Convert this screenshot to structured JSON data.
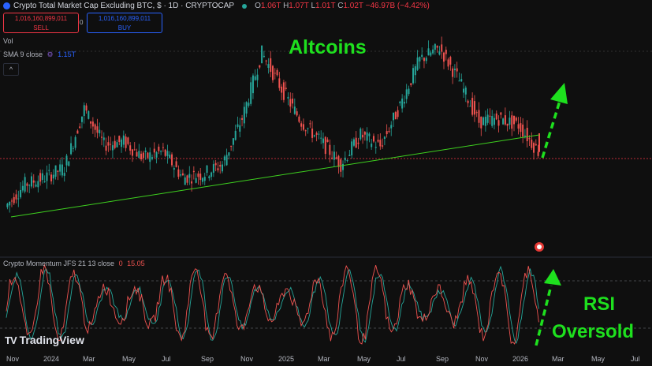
{
  "header": {
    "title": "Crypto Total Market Cap Excluding BTC, $ · 1D · CRYPTOCAP",
    "ohlc": [
      {
        "k": "O",
        "v": "1.06T"
      },
      {
        "k": "H",
        "v": "1.07T"
      },
      {
        "k": "L",
        "v": "1.01T"
      },
      {
        "k": "C",
        "v": "1.02T"
      }
    ],
    "change": "−46.97B (−4.42%)"
  },
  "trade": {
    "sell_price": "1,016,160,899,011",
    "sell_label": "SELL",
    "spread": "0",
    "buy_price": "1,016,160,899,011",
    "buy_label": "BUY"
  },
  "indicators": {
    "vol_label": "Vol",
    "sma_label": "SMA 9 close",
    "sma_value": "1.15T",
    "collapse_glyph": "^",
    "osc_label": "Crypto Momentum JFS 21 13 close",
    "osc_v1": "0",
    "osc_v2": "15.05"
  },
  "annotations": {
    "altcoins": "Altcoins",
    "rsi": "RSI",
    "oversold": "Oversold"
  },
  "brand": {
    "name": "TradingView"
  },
  "chart_data": {
    "type": "line",
    "title": "Crypto Total Market Cap Excluding BTC",
    "price_series": {
      "name": "Crypto Total Market Cap Excluding BTC",
      "points": [
        [
          "Nov 2023",
          0.68
        ],
        [
          "Dec 2023",
          0.82
        ],
        [
          "Jan 2024",
          0.86
        ],
        [
          "Feb 2024",
          0.92
        ],
        [
          "Mar 2024",
          1.28
        ],
        [
          "Apr 2024",
          1.06
        ],
        [
          "May 2024",
          1.08
        ],
        [
          "Jun 2024",
          0.98
        ],
        [
          "Jul 2024",
          1.02
        ],
        [
          "Aug 2024",
          0.86
        ],
        [
          "Sep 2024",
          0.88
        ],
        [
          "Oct 2024",
          0.94
        ],
        [
          "Nov 2024",
          1.22
        ],
        [
          "Dec 2024",
          1.62
        ],
        [
          "Jan 2025",
          1.4
        ],
        [
          "Feb 2025",
          1.2
        ],
        [
          "Mar 2025",
          1.08
        ],
        [
          "Apr 2025",
          0.94
        ],
        [
          "May 2025",
          1.12
        ],
        [
          "Jun 2025",
          1.05
        ],
        [
          "Jul 2025",
          1.3
        ],
        [
          "Aug 2025",
          1.58
        ],
        [
          "Sep 2025",
          1.65
        ],
        [
          "Oct 2025",
          1.45
        ],
        [
          "Nov 2025",
          1.2
        ],
        [
          "Dec 2025",
          1.22
        ],
        [
          "Jan 2026",
          1.18
        ],
        [
          "Feb 2026",
          1.02
        ]
      ]
    },
    "current_price": 1.016,
    "trendline": {
      "from": [
        "Nov 2023",
        0.62
      ],
      "to": [
        "Feb 2026",
        1.12
      ]
    },
    "oscillator": {
      "name": "Crypto Momentum JFS",
      "overbought": 80,
      "oversold": 20,
      "ylim": [
        0,
        100
      ]
    },
    "x_ticks": [
      "Nov",
      "2024",
      "Mar",
      "May",
      "Jul",
      "Sep",
      "Nov",
      "2025",
      "Mar",
      "May",
      "Jul",
      "Sep",
      "Nov",
      "2026",
      "Mar",
      "May",
      "Jul"
    ],
    "colors": {
      "up": "#26a69a",
      "down": "#ef5350",
      "trendline": "#3ed11f",
      "arrow": "#1ee01e",
      "osc_fast": "#ef5350",
      "osc_slow": "#26a69a"
    },
    "grid": false
  }
}
